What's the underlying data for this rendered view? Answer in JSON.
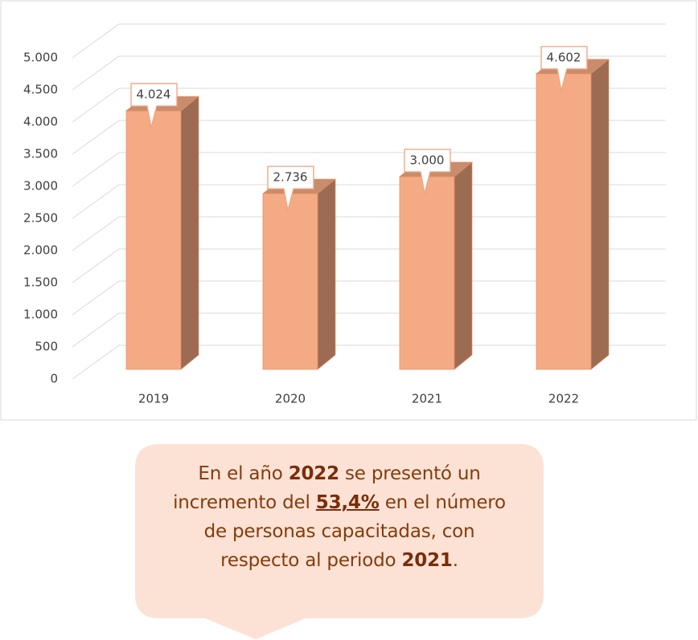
{
  "chart_data": {
    "type": "bar3d",
    "categories": [
      "2019",
      "2020",
      "2021",
      "2022"
    ],
    "values": [
      4024,
      2736,
      3000,
      4602
    ],
    "value_labels": [
      "4.024",
      "2.736",
      "3.000",
      "4.602"
    ],
    "color": "#f4ab84",
    "ylim": [
      0,
      5000
    ],
    "yticks": [
      0,
      500,
      {
        "value": 1000,
        "label": "1.000"
      },
      {
        "value": 1500,
        "label": "1.500"
      },
      {
        "value": 2000,
        "label": "2.000"
      },
      {
        "value": 2500,
        "label": "2.500"
      },
      {
        "value": 3000,
        "label": "3.000"
      },
      {
        "value": 3500,
        "label": "3.500"
      },
      {
        "value": 4000,
        "label": "4.000"
      },
      {
        "value": 4500,
        "label": "4.500"
      },
      {
        "value": 5000,
        "label": "5.000"
      }
    ],
    "grid": true
  },
  "callout": {
    "parts": [
      "En el año ",
      "2022",
      " se presentó un",
      "incremento del ",
      "53,4%",
      " en el número",
      "de personas capacitadas, con",
      "respecto al periodo ",
      "2021",
      "."
    ]
  }
}
